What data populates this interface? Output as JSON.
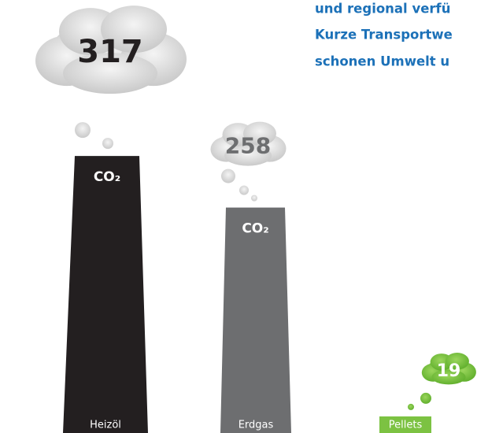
{
  "chart_data": {
    "type": "bar",
    "categories": [
      "Heizöl",
      "Erdgas",
      "Pellets"
    ],
    "values": [
      317,
      258,
      19
    ],
    "colors": [
      "#231f20",
      "#6d6e70",
      "#7cc242"
    ],
    "marker_label": "CO₂",
    "annotations": [
      "und regional verfü",
      "Kurze Transportwe",
      "schonen Umwelt u"
    ]
  }
}
